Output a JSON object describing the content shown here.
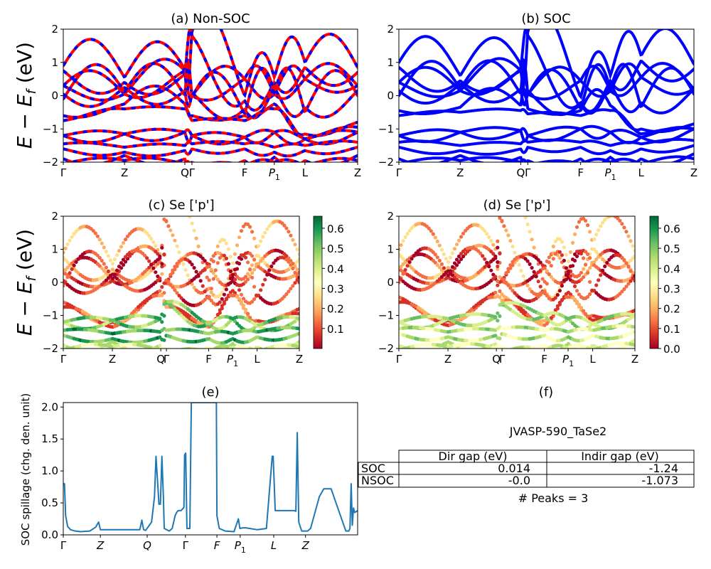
{
  "chart_data": [
    {
      "id": "a",
      "type": "line",
      "title": "(a) Non-SOC",
      "ylabel": "E − E_f (eV)",
      "ylim": [
        -2,
        2
      ],
      "yticks": [
        "−2",
        "−1",
        "0",
        "1",
        "2"
      ],
      "ytick_values": [
        -2,
        -1,
        0,
        1,
        2
      ],
      "xticks": [
        "Γ",
        "Z",
        "Q",
        "Γ",
        "F",
        "P1",
        "L",
        "Z"
      ],
      "xtick_positions": [
        0,
        0.208,
        0.413,
        0.437,
        0.616,
        0.717,
        0.821,
        1.0
      ],
      "style": "red solid with blue dashed overlay (spin up/down)",
      "colors": {
        "primary": "#ff0000",
        "secondary": "#0000ff"
      },
      "series_note": "Approximate band energies (eV) sampled at the high-symmetry points",
      "bands": [
        [
          0.9,
          0.55,
          0.8,
          1.95,
          0.0,
          0.55,
          1.0,
          0.85
        ],
        [
          0.3,
          0.05,
          0.75,
          0.0,
          0.5,
          0.05,
          0.5,
          0.3
        ],
        [
          -0.1,
          0.1,
          0.0,
          -0.05,
          -0.55,
          0.1,
          -0.5,
          0.0
        ],
        [
          -0.6,
          -0.25,
          -0.25,
          -0.6,
          -0.6,
          -0.25,
          -1.15,
          -0.8
        ],
        [
          -1.2,
          -1.15,
          -1.1,
          -1.2,
          -1.25,
          -1.1,
          -1.3,
          -1.1
        ],
        [
          -1.6,
          -1.7,
          -1.65,
          -1.6,
          -1.6,
          -1.7,
          -1.65,
          -1.55
        ],
        [
          -1.9,
          -1.8,
          -1.9,
          -2.0,
          -1.95,
          -1.85,
          -1.95,
          -1.8
        ]
      ]
    },
    {
      "id": "b",
      "type": "line",
      "title": "(b) SOC",
      "ylim": [
        -2,
        2
      ],
      "yticks": [
        "−2",
        "−1",
        "0",
        "1",
        "2"
      ],
      "ytick_values": [
        -2,
        -1,
        0,
        1,
        2
      ],
      "xticks": [
        "Γ",
        "Z",
        "Q",
        "Γ",
        "F",
        "P1",
        "L",
        "Z"
      ],
      "xtick_positions": [
        0,
        0.208,
        0.413,
        0.437,
        0.616,
        0.717,
        0.821,
        1.0
      ],
      "colors": {
        "primary": "#0000ff"
      },
      "bands": [
        [
          1.0,
          0.6,
          0.95,
          1.95,
          -0.05,
          0.6,
          1.2,
          0.95
        ],
        [
          0.4,
          0.15,
          0.75,
          0.05,
          0.45,
          0.15,
          0.55,
          0.2
        ],
        [
          0.0,
          0.2,
          0.05,
          0.0,
          -0.4,
          0.2,
          -0.35,
          0.05
        ],
        [
          -0.45,
          -0.35,
          -0.3,
          -0.4,
          -0.45,
          -0.3,
          -1.0,
          -0.85
        ],
        [
          -1.2,
          -1.1,
          -1.05,
          -1.2,
          -1.0,
          -1.1,
          -1.25,
          -1.0
        ],
        [
          -1.55,
          -1.65,
          -1.6,
          -1.55,
          -1.55,
          -1.65,
          -1.6,
          -1.5
        ],
        [
          -1.9,
          -1.8,
          -1.85,
          -1.95,
          -1.9,
          -1.85,
          -1.9,
          -1.75
        ]
      ]
    },
    {
      "id": "c",
      "type": "scatter",
      "title": "(c)  Se ['p']",
      "ylabel": "E − E_f (eV)",
      "ylim": [
        -2,
        2
      ],
      "yticks": [
        "−2",
        "−1",
        "0",
        "1",
        "2"
      ],
      "ytick_values": [
        -2,
        -1,
        0,
        1,
        2
      ],
      "xticks": [
        "Γ",
        "Z",
        "Q",
        "Γ",
        "F",
        "P1",
        "L",
        "Z"
      ],
      "xtick_positions": [
        0,
        0.208,
        0.413,
        0.437,
        0.616,
        0.717,
        0.821,
        1.0
      ],
      "colormap": "RdYlGn",
      "colorbar_ticks": [
        "0.1",
        "0.2",
        "0.3",
        "0.4",
        "0.5",
        "0.6"
      ],
      "colorbar_tick_values": [
        0.1,
        0.2,
        0.3,
        0.4,
        0.5,
        0.6
      ],
      "color_range": [
        0.0,
        0.66
      ],
      "bands": [
        {
          "e": [
            0.9,
            0.55,
            0.8,
            1.95,
            0.0,
            0.55,
            1.0,
            0.85
          ],
          "w": 0.2
        },
        {
          "e": [
            0.3,
            0.05,
            0.75,
            0.0,
            0.5,
            0.05,
            0.5,
            0.3
          ],
          "w": 0.1
        },
        {
          "e": [
            -0.1,
            0.1,
            0.0,
            -0.05,
            -0.55,
            0.1,
            -0.5,
            0.0
          ],
          "w": 0.07
        },
        {
          "e": [
            -0.6,
            -1.2,
            -0.25,
            -0.6,
            -1.2,
            -0.25,
            -1.15,
            -0.8
          ],
          "w": 0.12
        },
        {
          "e": [
            -1.2,
            -1.15,
            -1.1,
            -0.6,
            -1.25,
            -1.1,
            -1.3,
            -1.1
          ],
          "w": 0.5
        },
        {
          "e": [
            -1.6,
            -1.7,
            -1.65,
            -1.6,
            -1.7,
            -1.7,
            -1.65,
            -1.55
          ],
          "w": 0.55
        },
        {
          "e": [
            -1.9,
            -1.8,
            -1.9,
            -2.0,
            -1.95,
            -1.85,
            -1.95,
            -1.8
          ],
          "w": 0.4
        }
      ]
    },
    {
      "id": "d",
      "type": "scatter",
      "title": "(d) Se ['p']",
      "ylim": [
        -2,
        2
      ],
      "yticks": [
        "−2",
        "−1",
        "0",
        "1",
        "2"
      ],
      "ytick_values": [
        -2,
        -1,
        0,
        1,
        2
      ],
      "xticks": [
        "Γ",
        "Z",
        "Q",
        "Γ",
        "F",
        "P1",
        "L",
        "Z"
      ],
      "xtick_positions": [
        0,
        0.208,
        0.413,
        0.437,
        0.616,
        0.717,
        0.821,
        1.0
      ],
      "colormap": "RdYlGn",
      "colorbar_ticks": [
        "0.0",
        "0.1",
        "0.2",
        "0.3",
        "0.4",
        "0.5",
        "0.6"
      ],
      "colorbar_tick_values": [
        0.0,
        0.1,
        0.2,
        0.3,
        0.4,
        0.5,
        0.6
      ],
      "color_range": [
        0.0,
        0.66
      ],
      "bands": [
        {
          "e": [
            1.0,
            0.6,
            0.95,
            1.95,
            -0.05,
            0.6,
            1.2,
            0.95
          ],
          "w": 0.2
        },
        {
          "e": [
            0.4,
            0.15,
            0.75,
            0.05,
            0.45,
            0.15,
            0.55,
            0.2
          ],
          "w": 0.1
        },
        {
          "e": [
            0.0,
            0.2,
            0.05,
            0.0,
            -0.4,
            0.2,
            -0.35,
            0.05
          ],
          "w": 0.07
        },
        {
          "e": [
            -0.45,
            -1.15,
            -0.3,
            -0.4,
            -1.15,
            -0.3,
            -1.0,
            -0.85
          ],
          "w": 0.12
        },
        {
          "e": [
            -1.2,
            -1.1,
            -1.05,
            -0.65,
            -1.0,
            -1.1,
            -1.25,
            -1.0
          ],
          "w": 0.45
        },
        {
          "e": [
            -1.55,
            -1.65,
            -1.6,
            -1.55,
            -1.6,
            -1.65,
            -1.6,
            -1.5
          ],
          "w": 0.42
        },
        {
          "e": [
            -1.9,
            -1.8,
            -1.85,
            -1.95,
            -1.9,
            -1.85,
            -1.9,
            -1.75
          ],
          "w": 0.38
        }
      ]
    },
    {
      "id": "e",
      "type": "line",
      "title": "(e)",
      "ylabel": "SOC spillage (chg. den. unit)",
      "ylim": [
        0.0,
        2.07
      ],
      "yticks": [
        "0.0",
        "0.5",
        "1.0",
        "1.5",
        "2.0"
      ],
      "ytick_values": [
        0.0,
        0.5,
        1.0,
        1.5,
        2.0
      ],
      "xticks": [
        "Γ",
        "Z",
        "Q",
        "Γ",
        "F",
        "P1",
        "L",
        "Z"
      ],
      "xtick_positions": [
        0,
        0.126,
        0.285,
        0.415,
        0.522,
        0.601,
        0.715,
        0.823
      ],
      "color": "#1f77b4",
      "x": [
        0,
        0.004,
        0.008,
        0.015,
        0.025,
        0.04,
        0.06,
        0.09,
        0.11,
        0.12,
        0.126,
        0.13,
        0.2,
        0.26,
        0.267,
        0.273,
        0.28,
        0.3,
        0.31,
        0.315,
        0.325,
        0.33,
        0.335,
        0.34,
        0.343,
        0.36,
        0.37,
        0.38,
        0.385,
        0.39,
        0.4,
        0.41,
        0.412,
        0.416,
        0.42,
        0.43,
        0.435,
        0.44,
        0.52,
        0.522,
        0.53,
        0.55,
        0.58,
        0.595,
        0.6,
        0.61,
        0.62,
        0.66,
        0.69,
        0.71,
        0.713,
        0.72,
        0.73,
        0.785,
        0.79,
        0.795,
        0.8,
        0.81,
        0.83,
        0.84,
        0.87,
        0.885,
        0.91,
        0.96,
        0.97,
        0.974,
        0.978,
        0.982,
        0.986,
        0.99,
        1.0
      ],
      "y": [
        0.8,
        0.8,
        0.3,
        0.13,
        0.08,
        0.06,
        0.05,
        0.06,
        0.12,
        0.2,
        0.08,
        0.08,
        0.08,
        0.08,
        0.23,
        0.08,
        0.07,
        0.2,
        0.6,
        1.23,
        0.48,
        0.48,
        1.23,
        0.6,
        0.1,
        0.06,
        0.1,
        0.3,
        0.35,
        0.38,
        0.38,
        0.43,
        1.25,
        1.28,
        0.1,
        0.1,
        2.07,
        2.07,
        2.07,
        0.3,
        0.1,
        0.06,
        0.05,
        0.25,
        0.1,
        0.11,
        0.11,
        0.08,
        0.1,
        1.23,
        1.23,
        0.38,
        0.38,
        0.38,
        0.37,
        1.6,
        0.2,
        0.06,
        0.06,
        0.1,
        0.6,
        0.72,
        0.72,
        0.06,
        0.06,
        0.1,
        0.8,
        0.15,
        0.42,
        0.35,
        0.38
      ]
    }
  ],
  "panel_f": {
    "title": "(f)",
    "material": "JVASP-590_TaSe2",
    "table": {
      "columns": [
        "Dir gap (eV)",
        "Indir gap (eV)"
      ],
      "rows": [
        {
          "label": "SOC",
          "values": [
            "0.014",
            "-1.24"
          ]
        },
        {
          "label": "NSOC",
          "values": [
            "-0.0",
            "-1.073"
          ]
        }
      ]
    },
    "peaks_text": "# Peaks = 3"
  }
}
